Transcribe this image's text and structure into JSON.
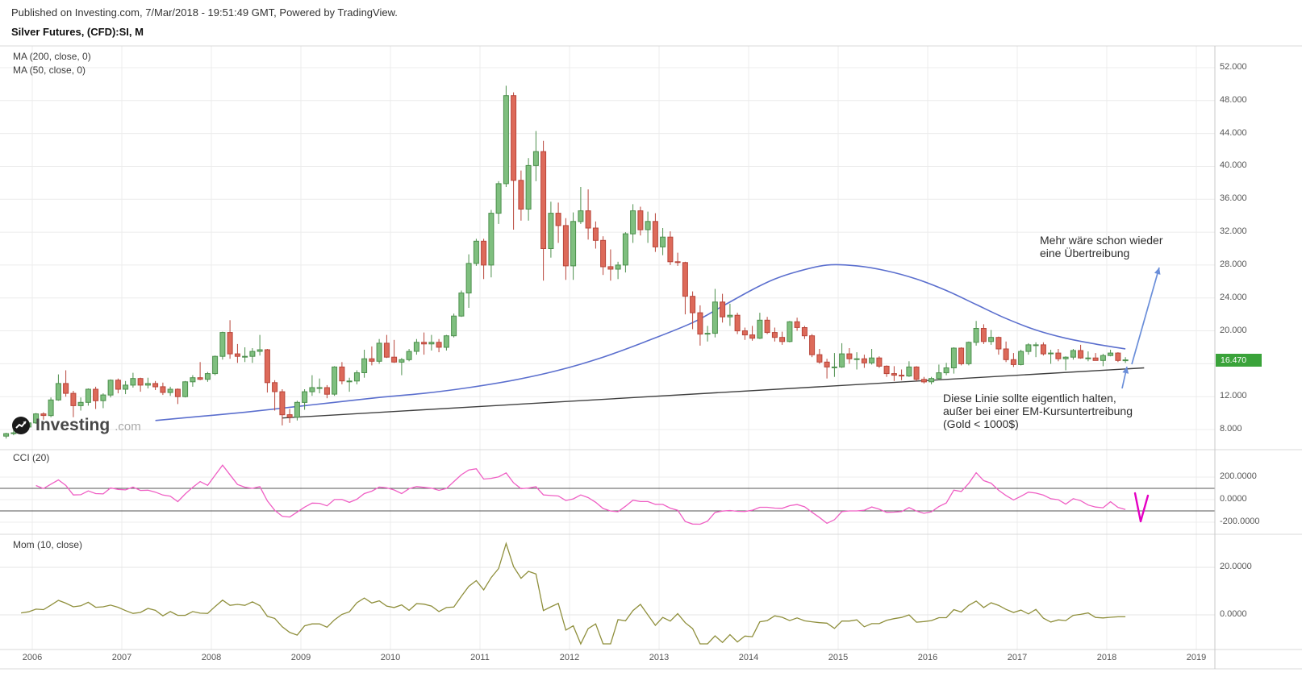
{
  "header": {
    "published": "Published on Investing.com, 7/Mar/2018 - 19:51:49 GMT, Powered by TradingView.",
    "title": "Silver Futures, (CFD):SI, M"
  },
  "legend": {
    "ma200": "MA (200, close, 0)",
    "ma50": "MA (50, close, 0)"
  },
  "watermark": {
    "main": "Investing",
    "suffix": ".com"
  },
  "panels": {
    "cci": {
      "label": "CCI (20)",
      "axis_labels": [
        "200.0000",
        "0.0000",
        "-200.0000"
      ],
      "axis_values": [
        200,
        0,
        -200
      ],
      "bands": [
        100,
        -100
      ]
    },
    "mom": {
      "label": "Mom (10, close)",
      "axis_labels": [
        "20.0000",
        "0.0000"
      ],
      "axis_values": [
        20,
        0
      ]
    }
  },
  "annotations": {
    "uebertreibung": {
      "lines": [
        "Mehr wäre schon wieder",
        "eine Übertreibung"
      ]
    },
    "linie": {
      "lines": [
        "Diese Linie sollte eigentlich halten,",
        "außer bei einer EM-Kursuntertreibung",
        "(Gold < 1000$)"
      ]
    }
  },
  "price_axis": {
    "labels": [
      "52.000",
      "48.000",
      "44.000",
      "40.000",
      "36.000",
      "32.000",
      "28.000",
      "24.000",
      "20.000",
      "12.000",
      "8.000"
    ],
    "badge": "16.470"
  },
  "x_axis": {
    "years": [
      "2006",
      "2007",
      "2008",
      "2009",
      "2010",
      "2011",
      "2012",
      "2013",
      "2014",
      "2015",
      "2016",
      "2017",
      "2018",
      "2019"
    ]
  },
  "colors": {
    "up": "#7fbf7f",
    "up_border": "#4c8f4c",
    "down": "#dd6a5a",
    "down_border": "#b8453a",
    "ma": "#5b6fce",
    "trend": "#3f3f3f",
    "cci": "#ef5fc4",
    "mom": "#8f8f3c",
    "arrow": "#6a8ed9",
    "check": "#e400c3",
    "badge": "#3aa33a",
    "grid": "#ececec",
    "band": "#555555"
  },
  "chart_data": {
    "type": "candlestick",
    "title": "Silver Futures, (CFD):SI, M",
    "interval": "monthly",
    "start_month": "2005-09",
    "current_price": 16.47,
    "price_gridlines": [
      52,
      48,
      44,
      40,
      36,
      32,
      28,
      24,
      20,
      16,
      12,
      8
    ],
    "ylim": [
      6.5,
      54
    ],
    "xlabels": [
      "2006",
      "2007",
      "2008",
      "2009",
      "2010",
      "2011",
      "2012",
      "2013",
      "2014",
      "2015",
      "2016",
      "2017",
      "2018",
      "2019"
    ],
    "candles": [
      [
        7.2,
        7.6,
        6.9,
        7.5
      ],
      [
        7.5,
        7.9,
        7.3,
        7.6
      ],
      [
        7.6,
        8.4,
        7.5,
        8.3
      ],
      [
        8.3,
        9.0,
        8.2,
        8.8
      ],
      [
        8.8,
        10.0,
        8.7,
        9.9
      ],
      [
        9.9,
        10.1,
        9.2,
        9.7
      ],
      [
        9.7,
        11.9,
        9.5,
        11.6
      ],
      [
        11.6,
        14.7,
        11.5,
        13.6
      ],
      [
        13.6,
        15.2,
        12.0,
        12.4
      ],
      [
        12.4,
        12.7,
        9.5,
        10.9
      ],
      [
        10.9,
        11.9,
        10.3,
        11.3
      ],
      [
        11.3,
        13.0,
        10.9,
        12.9
      ],
      [
        12.9,
        13.2,
        10.5,
        11.5
      ],
      [
        11.5,
        12.4,
        10.6,
        12.2
      ],
      [
        12.2,
        14.1,
        11.9,
        14.0
      ],
      [
        14.0,
        14.2,
        12.4,
        12.9
      ],
      [
        12.9,
        13.9,
        12.3,
        13.4
      ],
      [
        13.4,
        14.9,
        13.1,
        14.2
      ],
      [
        14.2,
        14.3,
        12.6,
        13.4
      ],
      [
        13.4,
        14.3,
        13.0,
        13.6
      ],
      [
        13.6,
        13.9,
        12.8,
        13.2
      ],
      [
        13.2,
        13.7,
        12.2,
        12.5
      ],
      [
        12.5,
        13.2,
        12.1,
        12.9
      ],
      [
        12.9,
        13.0,
        11.1,
        12.0
      ],
      [
        12.0,
        13.9,
        11.9,
        13.8
      ],
      [
        13.8,
        14.6,
        13.2,
        14.3
      ],
      [
        14.3,
        16.2,
        14.0,
        14.1
      ],
      [
        14.1,
        15.0,
        13.8,
        14.8
      ],
      [
        14.8,
        17.0,
        14.6,
        16.9
      ],
      [
        16.9,
        19.9,
        16.5,
        19.8
      ],
      [
        19.8,
        21.3,
        16.6,
        17.2
      ],
      [
        17.2,
        18.4,
        16.1,
        16.9
      ],
      [
        16.9,
        18.0,
        16.2,
        16.9
      ],
      [
        16.9,
        17.9,
        16.1,
        17.5
      ],
      [
        17.5,
        19.5,
        17.0,
        17.7
      ],
      [
        17.7,
        17.8,
        12.5,
        13.7
      ],
      [
        13.7,
        14.0,
        10.3,
        12.6
      ],
      [
        12.6,
        12.9,
        8.5,
        9.8
      ],
      [
        9.8,
        10.5,
        8.8,
        9.5
      ],
      [
        9.5,
        11.5,
        9.1,
        11.3
      ],
      [
        11.3,
        12.9,
        10.4,
        12.6
      ],
      [
        12.6,
        14.6,
        12.1,
        13.1
      ],
      [
        13.1,
        14.2,
        12.4,
        13.1
      ],
      [
        13.1,
        13.4,
        11.8,
        12.3
      ],
      [
        12.3,
        15.7,
        12.1,
        15.6
      ],
      [
        15.6,
        16.2,
        13.5,
        13.9
      ],
      [
        13.9,
        14.3,
        12.6,
        13.9
      ],
      [
        13.9,
        15.2,
        13.5,
        14.9
      ],
      [
        14.9,
        17.7,
        14.3,
        16.6
      ],
      [
        16.6,
        18.1,
        15.8,
        16.3
      ],
      [
        16.3,
        19.0,
        16.0,
        18.5
      ],
      [
        18.5,
        19.5,
        16.7,
        16.8
      ],
      [
        16.8,
        18.9,
        16.1,
        16.2
      ],
      [
        16.2,
        16.7,
        14.6,
        16.5
      ],
      [
        16.5,
        17.8,
        16.3,
        17.5
      ],
      [
        17.5,
        19.0,
        17.1,
        18.6
      ],
      [
        18.6,
        19.8,
        17.1,
        18.4
      ],
      [
        18.4,
        19.5,
        17.6,
        18.6
      ],
      [
        18.6,
        19.0,
        17.4,
        18.0
      ],
      [
        18.0,
        19.5,
        17.6,
        19.4
      ],
      [
        19.4,
        22.1,
        19.2,
        21.8
      ],
      [
        21.8,
        24.9,
        21.7,
        24.6
      ],
      [
        24.6,
        29.3,
        22.8,
        28.2
      ],
      [
        28.2,
        31.2,
        27.9,
        30.9
      ],
      [
        30.9,
        31.2,
        26.3,
        28.0
      ],
      [
        28.0,
        34.7,
        26.5,
        34.3
      ],
      [
        34.3,
        38.2,
        33.0,
        37.9
      ],
      [
        37.9,
        49.8,
        37.5,
        48.6
      ],
      [
        48.6,
        49.0,
        32.3,
        38.3
      ],
      [
        38.3,
        39.5,
        33.4,
        34.8
      ],
      [
        34.8,
        41.0,
        33.4,
        40.1
      ],
      [
        40.1,
        44.3,
        38.2,
        41.8
      ],
      [
        41.8,
        43.1,
        26.1,
        30.0
      ],
      [
        30.0,
        35.7,
        28.9,
        34.3
      ],
      [
        34.3,
        35.6,
        30.7,
        32.8
      ],
      [
        32.8,
        33.7,
        26.2,
        27.9
      ],
      [
        27.9,
        34.4,
        26.2,
        33.3
      ],
      [
        33.3,
        37.5,
        33.0,
        34.6
      ],
      [
        34.6,
        37.2,
        31.1,
        32.5
      ],
      [
        32.5,
        33.3,
        30.0,
        31.0
      ],
      [
        31.0,
        31.5,
        26.8,
        27.8
      ],
      [
        27.8,
        29.9,
        26.1,
        27.5
      ],
      [
        27.5,
        28.4,
        26.3,
        28.0
      ],
      [
        28.0,
        32.0,
        27.1,
        31.8
      ],
      [
        31.8,
        35.4,
        30.7,
        34.6
      ],
      [
        34.6,
        35.1,
        31.6,
        32.3
      ],
      [
        32.3,
        34.5,
        30.7,
        33.3
      ],
      [
        33.3,
        34.3,
        29.6,
        30.2
      ],
      [
        30.2,
        32.5,
        29.2,
        31.4
      ],
      [
        31.4,
        32.1,
        28.0,
        28.4
      ],
      [
        28.4,
        29.5,
        27.9,
        28.3
      ],
      [
        28.3,
        28.4,
        22.0,
        24.2
      ],
      [
        24.2,
        24.8,
        20.2,
        22.2
      ],
      [
        22.2,
        23.1,
        18.2,
        19.6
      ],
      [
        19.6,
        20.6,
        18.7,
        19.7
      ],
      [
        19.7,
        25.1,
        19.2,
        23.5
      ],
      [
        23.5,
        24.5,
        21.0,
        21.7
      ],
      [
        21.7,
        23.3,
        20.6,
        21.9
      ],
      [
        21.9,
        22.2,
        19.6,
        20.0
      ],
      [
        20.0,
        20.4,
        18.9,
        19.5
      ],
      [
        19.5,
        20.6,
        18.8,
        19.1
      ],
      [
        19.1,
        22.2,
        19.0,
        21.3
      ],
      [
        21.3,
        21.7,
        19.6,
        19.8
      ],
      [
        19.8,
        20.4,
        18.7,
        19.2
      ],
      [
        19.2,
        19.9,
        18.3,
        18.7
      ],
      [
        18.7,
        21.2,
        18.6,
        21.1
      ],
      [
        21.1,
        21.6,
        20.0,
        20.4
      ],
      [
        20.4,
        20.6,
        19.0,
        19.4
      ],
      [
        19.4,
        19.6,
        16.8,
        17.1
      ],
      [
        17.1,
        17.8,
        16.0,
        16.2
      ],
      [
        16.2,
        16.6,
        14.2,
        15.6
      ],
      [
        15.6,
        17.3,
        14.4,
        15.6
      ],
      [
        15.6,
        18.5,
        15.5,
        17.2
      ],
      [
        17.2,
        17.9,
        16.0,
        16.6
      ],
      [
        16.6,
        17.4,
        15.3,
        16.6
      ],
      [
        16.6,
        17.1,
        15.5,
        16.1
      ],
      [
        16.1,
        17.8,
        15.9,
        16.7
      ],
      [
        16.7,
        16.9,
        15.5,
        15.7
      ],
      [
        15.7,
        15.8,
        14.4,
        14.8
      ],
      [
        14.8,
        15.7,
        13.9,
        14.6
      ],
      [
        14.6,
        15.3,
        14.0,
        14.5
      ],
      [
        14.5,
        16.3,
        14.4,
        15.6
      ],
      [
        15.6,
        15.7,
        13.9,
        14.1
      ],
      [
        14.1,
        14.4,
        13.6,
        13.8
      ],
      [
        13.8,
        14.4,
        13.5,
        14.2
      ],
      [
        14.2,
        15.9,
        14.0,
        14.9
      ],
      [
        14.9,
        16.1,
        14.6,
        15.5
      ],
      [
        15.5,
        18.0,
        14.8,
        17.9
      ],
      [
        17.9,
        18.0,
        15.8,
        16.0
      ],
      [
        16.0,
        18.7,
        15.8,
        18.6
      ],
      [
        18.6,
        21.2,
        18.2,
        20.3
      ],
      [
        20.3,
        20.8,
        18.4,
        18.7
      ],
      [
        18.7,
        20.1,
        18.3,
        19.2
      ],
      [
        19.2,
        19.3,
        17.1,
        17.8
      ],
      [
        17.8,
        18.7,
        16.2,
        16.5
      ],
      [
        16.5,
        17.3,
        15.6,
        15.9
      ],
      [
        15.9,
        17.7,
        15.8,
        17.5
      ],
      [
        17.5,
        18.5,
        17.1,
        18.3
      ],
      [
        18.3,
        18.6,
        16.8,
        18.3
      ],
      [
        18.3,
        18.6,
        17.0,
        17.2
      ],
      [
        17.2,
        17.7,
        16.0,
        17.3
      ],
      [
        17.3,
        17.8,
        16.3,
        16.6
      ],
      [
        16.6,
        16.9,
        15.2,
        16.8
      ],
      [
        16.8,
        17.8,
        16.5,
        17.6
      ],
      [
        17.6,
        18.3,
        16.6,
        16.7
      ],
      [
        16.7,
        17.5,
        16.3,
        16.7
      ],
      [
        16.7,
        17.3,
        16.5,
        16.4
      ],
      [
        16.4,
        17.2,
        15.7,
        17.0
      ],
      [
        17.0,
        17.7,
        16.9,
        17.3
      ],
      [
        17.3,
        17.4,
        16.2,
        16.4
      ],
      [
        16.4,
        16.8,
        16.1,
        16.47
      ]
    ],
    "ma50_points": [
      [
        20,
        9.1
      ],
      [
        26,
        9.6
      ],
      [
        32,
        10.1
      ],
      [
        38,
        10.7
      ],
      [
        44,
        11.3
      ],
      [
        50,
        11.9
      ],
      [
        56,
        12.4
      ],
      [
        62,
        13.1
      ],
      [
        68,
        14.0
      ],
      [
        74,
        15.2
      ],
      [
        80,
        16.8
      ],
      [
        86,
        18.8
      ],
      [
        92,
        21.0
      ],
      [
        96,
        23.0
      ],
      [
        100,
        25.0
      ],
      [
        103,
        26.3
      ],
      [
        106,
        27.2
      ],
      [
        110,
        28.0
      ],
      [
        114,
        27.9
      ],
      [
        118,
        27.3
      ],
      [
        122,
        26.3
      ],
      [
        126,
        24.9
      ],
      [
        130,
        23.2
      ],
      [
        134,
        21.5
      ],
      [
        138,
        20.1
      ],
      [
        142,
        19.1
      ],
      [
        146,
        18.4
      ],
      [
        150,
        17.8
      ]
    ],
    "trendline": {
      "from": [
        37,
        9.4
      ],
      "to": [
        152.5,
        15.5
      ]
    },
    "cci": {
      "period": 20,
      "upper_band": 100,
      "lower_band": -100,
      "axis_ticks": [
        200,
        0,
        -200
      ]
    },
    "mom": {
      "period": 10,
      "axis_ticks": [
        20,
        0
      ]
    }
  }
}
